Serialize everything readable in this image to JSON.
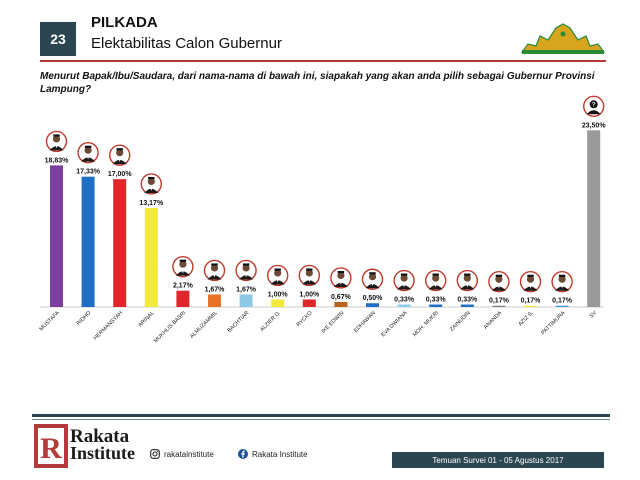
{
  "header": {
    "slide_number": "23",
    "title": "PILKADA",
    "subtitle": "Elektabilitas Calon Gubernur"
  },
  "question": "Menurut Bapak/Ibu/Saudara, dari nama-nama di bawah ini, siapakah yang akan anda pilih sebagai Gubernur Provinsi Lampung?",
  "colors": {
    "accent": "#2c4651",
    "header_line": "#b53a3a"
  },
  "chart_data": {
    "type": "bar",
    "categories": [
      "MUSTAFA",
      "RIDHO",
      "HERMANSYAH",
      "ARINAL",
      "MUKHLIS BASRI",
      "ALMUZAMMIL",
      "BACHTIAR",
      "ALZIER D.",
      "RYCKO",
      "IKE EDWIN",
      "EDHAWAN",
      "EVA DWIANA",
      "MOH. MUKRI",
      "ZAINUDIN",
      "ANANDA",
      "AZIZ S.",
      "PATTIMURA",
      "SV"
    ],
    "values": [
      18.83,
      17.33,
      17.0,
      13.17,
      2.17,
      1.67,
      1.67,
      1.0,
      1.0,
      0.67,
      0.5,
      0.33,
      0.33,
      0.33,
      0.17,
      0.17,
      0.17,
      23.5
    ],
    "labels": [
      "18,83%",
      "17,33%",
      "17,00%",
      "13,17%",
      "2,17%",
      "1,67%",
      "1,67%",
      "1,00%",
      "1,00%",
      "0,67%",
      "0,50%",
      "0,33%",
      "0,33%",
      "0,33%",
      "0,17%",
      "0,17%",
      "0,17%",
      "23,50%"
    ],
    "colors": [
      "#7b3fa0",
      "#1f6fc4",
      "#e0252b",
      "#f2ea3a",
      "#e0252b",
      "#e8742a",
      "#8ecae6",
      "#f2ea3a",
      "#e0252b",
      "#b5651d",
      "#1f6fc4",
      "#8ecae6",
      "#1f6fc4",
      "#1f6fc4",
      "#7f7f7f",
      "#f2ea3a",
      "#3aa0d8",
      "#9a9a9a"
    ],
    "ylim": [
      0,
      25
    ],
    "grid": false,
    "legend": "none"
  },
  "footer": {
    "brand_line1": "Rakata",
    "brand_line2": "Institute",
    "instagram": "rakatainstitute",
    "facebook": "Rakata Institute",
    "survey_note": "Temuan Survei 01 - 05 Agustus 2017"
  }
}
